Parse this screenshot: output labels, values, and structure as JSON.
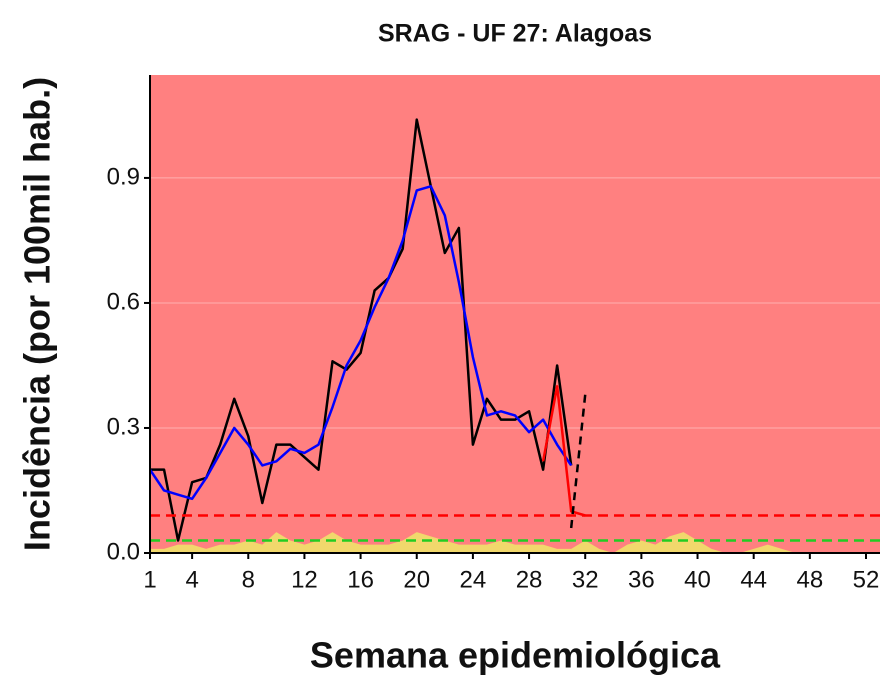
{
  "chart_data": {
    "type": "line",
    "title": "SRAG - UF 27: Alagoas",
    "x_label": "Semana epidemiológica",
    "y_label": "Incidência (por 100mil hab.)",
    "background": "#ff8080",
    "grid": true,
    "xlim": [
      1,
      52
    ],
    "ylim": [
      0,
      1.147
    ],
    "xticks": [
      1,
      4,
      8,
      12,
      16,
      20,
      24,
      28,
      32,
      36,
      40,
      44,
      48,
      52
    ],
    "yticks": [
      {
        "value": 0,
        "label": "0.0"
      },
      0.3,
      0.6,
      0.9
    ],
    "x": [
      1,
      2,
      3,
      4,
      5,
      6,
      7,
      8,
      9,
      10,
      11,
      12,
      13,
      14,
      15,
      16,
      17,
      18,
      19,
      20,
      21,
      22,
      23,
      24,
      25,
      26,
      27,
      28,
      29,
      30,
      31,
      32,
      33,
      34,
      35,
      36,
      37,
      38,
      39,
      40,
      41,
      42,
      43,
      44,
      45,
      46,
      47,
      48,
      49,
      50,
      51,
      52
    ],
    "hlines": [
      {
        "value": 0.09,
        "color": "#ff0000"
      },
      {
        "value": 0.03,
        "color": "#22cc22"
      }
    ],
    "series": [
      {
        "color": "#eeee66",
        "area": true,
        "values": [
          0.01,
          0.01,
          0.02,
          0.02,
          0.01,
          0.02,
          0.02,
          0.03,
          0.02,
          0.05,
          0.03,
          0.02,
          0.03,
          0.05,
          0.03,
          0.02,
          0.02,
          0.02,
          0.03,
          0.05,
          0.04,
          0.03,
          0.02,
          0.02,
          0.02,
          0.03,
          0.02,
          0.02,
          0.02,
          0.01,
          0.01,
          0.03,
          0.01,
          0.0,
          0.02,
          0.03,
          0.02,
          0.04,
          0.05,
          0.03,
          0.01,
          0.0,
          0.0,
          0.01,
          0.02,
          0.01,
          0.0,
          0.0,
          0.0,
          0.0,
          0.0,
          0.0
        ]
      },
      {
        "color": "#000000",
        "values": [
          0.2,
          0.2,
          0.03,
          0.17,
          0.18,
          0.26,
          0.37,
          0.28,
          0.12,
          0.26,
          0.26,
          0.23,
          0.2,
          0.46,
          0.44,
          0.48,
          0.63,
          0.66,
          0.73,
          1.04,
          0.88,
          0.72,
          0.78,
          0.26,
          0.37,
          0.32,
          0.32,
          0.34,
          0.2,
          0.45,
          0.21,
          null,
          null,
          null,
          null,
          null,
          null,
          null,
          null,
          null,
          null,
          null,
          null,
          null,
          null,
          null,
          null,
          null,
          null,
          null,
          null,
          null
        ]
      },
      {
        "color": "#0000ff",
        "values": [
          0.2,
          0.15,
          0.14,
          0.13,
          0.18,
          0.24,
          0.3,
          0.26,
          0.21,
          0.22,
          0.25,
          0.24,
          0.26,
          0.35,
          0.45,
          0.51,
          0.59,
          0.66,
          0.75,
          0.87,
          0.88,
          0.81,
          0.65,
          0.47,
          0.33,
          0.34,
          0.33,
          0.29,
          0.32,
          0.26,
          0.21,
          null,
          null,
          null,
          null,
          null,
          null,
          null,
          null,
          null,
          null,
          null,
          null,
          null,
          null,
          null,
          null,
          null,
          null,
          null,
          null,
          null
        ]
      },
      {
        "color": "#ff0000",
        "values": [
          null,
          null,
          null,
          null,
          null,
          null,
          null,
          null,
          null,
          null,
          null,
          null,
          null,
          null,
          null,
          null,
          null,
          null,
          null,
          null,
          null,
          null,
          null,
          null,
          null,
          null,
          null,
          null,
          0.22,
          0.4,
          0.1,
          0.09,
          null,
          null,
          null,
          null,
          null,
          null,
          null,
          null,
          null,
          null,
          null,
          null,
          null,
          null,
          null,
          null,
          null,
          null,
          null,
          null
        ]
      },
      {
        "color": "#000000",
        "dash": true,
        "values": [
          null,
          null,
          null,
          null,
          null,
          null,
          null,
          null,
          null,
          null,
          null,
          null,
          null,
          null,
          null,
          null,
          null,
          null,
          null,
          null,
          null,
          null,
          null,
          null,
          null,
          null,
          null,
          null,
          null,
          null,
          0.06,
          0.38,
          null,
          null,
          null,
          null,
          null,
          null,
          null,
          null,
          null,
          null,
          null,
          null,
          null,
          null,
          null,
          null,
          null,
          null,
          null,
          null
        ]
      }
    ]
  }
}
